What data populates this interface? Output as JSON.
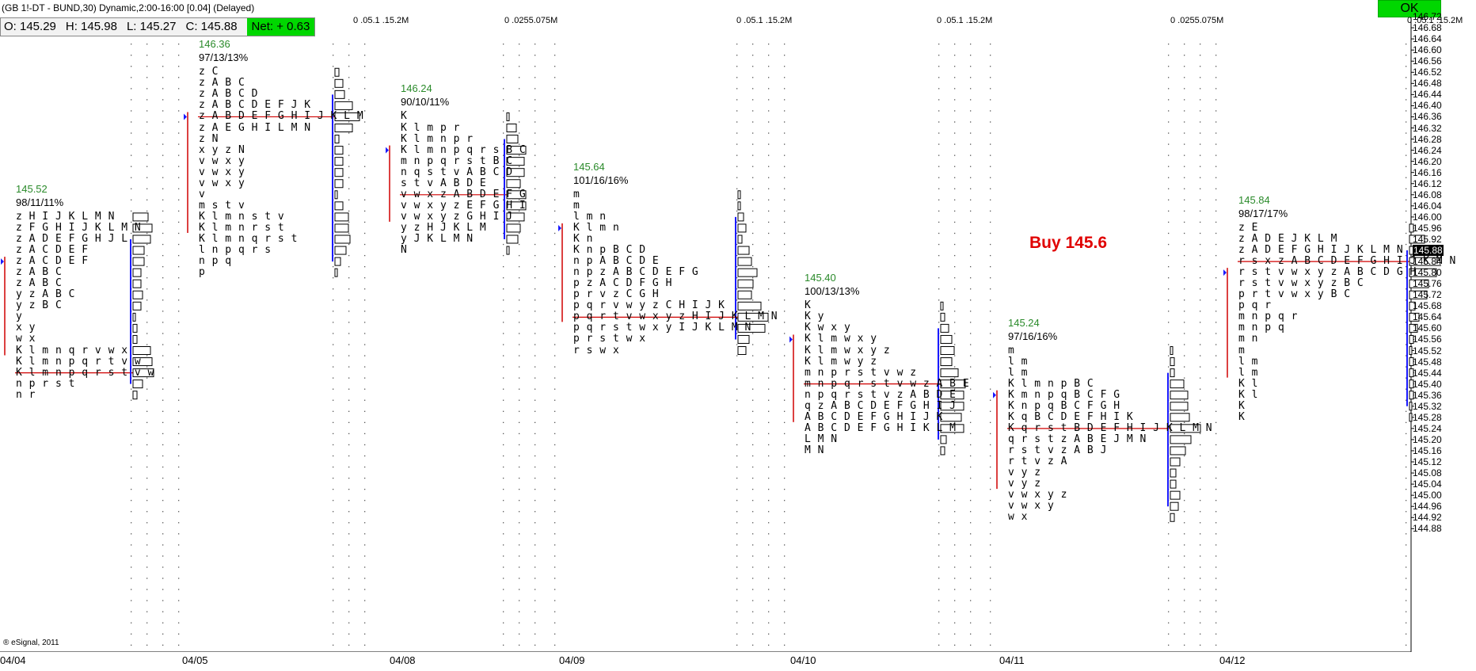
{
  "window_title": "(GB 1!-DT - BUND,30) Dynamic,2:00-16:00 [0.04] (Delayed)",
  "ohlc": {
    "open": "O: 145.29",
    "high": "H: 145.98",
    "low": "L: 145.27",
    "close": "C: 145.88",
    "net": "Net: + 0.63"
  },
  "ok_label": "OK",
  "buy_annotation": "Buy 145.6",
  "footer": "® eSignal, 2011",
  "current_price": "145.88",
  "price_axis": [
    "146.72",
    "146.68",
    "146.64",
    "146.60",
    "146.56",
    "146.52",
    "146.48",
    "146.44",
    "146.40",
    "146.36",
    "146.32",
    "146.28",
    "146.24",
    "146.20",
    "146.16",
    "146.12",
    "146.08",
    "146.04",
    "146.00",
    "145.96",
    "145.92",
    "145.88",
    "145.84",
    "145.80",
    "145.76",
    "145.72",
    "145.68",
    "145.64",
    "145.60",
    "145.56",
    "145.52",
    "145.48",
    "145.44",
    "145.40",
    "145.36",
    "145.32",
    "145.28",
    "145.24",
    "145.20",
    "145.16",
    "145.12",
    "145.08",
    "145.04",
    "145.00",
    "144.96",
    "144.92",
    "144.88"
  ],
  "dates": [
    "04/04",
    "04/05",
    "04/08",
    "04/09",
    "04/10",
    "04/11",
    "04/12"
  ],
  "volume_scales": [
    {
      "labels": [
        "0 .05.1 .15.2M"
      ]
    },
    {
      "labels": [
        "0 .0255.075M"
      ]
    },
    {
      "labels": [
        "0 .05.1 .15.2M"
      ]
    },
    {
      "labels": [
        "0 .05.1 .15.2M"
      ]
    },
    {
      "labels": [
        "0 .0255.075M"
      ]
    },
    {
      "labels": [
        "0 .05.1 .15.2M"
      ]
    }
  ],
  "profiles": [
    {
      "poc": "145.52",
      "stats": "98/11/11%",
      "top": "146.00",
      "rows": [
        "z H I J K L M N",
        "z F G H I J K L M N",
        "z A D E F G H J L",
        "z A C D E F",
        "z A C D E F",
        "z A B C",
        "z A B C",
        "y z A B C",
        "y z B C",
        "y",
        "x y",
        "w x",
        "K l m n q r v w x",
        "K l m n p q r t v w",
        "K l m n p q r s t v w",
        "n p r s t",
        "n r"
      ],
      "strike": 14
    },
    {
      "poc": "146.36",
      "stats": "97/13/13%",
      "top": "146.52",
      "rows": [
        "z C",
        "z A B C",
        "z A B C D",
        "z A B C D E F J K",
        "z A B D E F G H I J K L M",
        "z A E G H I L M N",
        "z N",
        "x y z N",
        "v w x y",
        "v w x y",
        "v w x y",
        "v",
        "m s t v",
        "K l m n s t v",
        "K l m n r s t",
        "K l m n q r s t",
        "l n p q r s",
        "n p q",
        "p"
      ],
      "strike": 4
    },
    {
      "poc": "146.24",
      "stats": "90/10/11%",
      "top": "146.36",
      "rows": [
        "K",
        "K l m p r",
        "K l m n p r",
        "K l m n p q r s B C",
        "m n p q r s t B C",
        "n q s t v A B C D",
        "s t v A B D E",
        "v w x z A B D E F G",
        "v w x y z E F G H I",
        "v w x y z G H I J",
        "y z H J K L M",
        "y J K L M N",
        "N"
      ],
      "strike": 7
    },
    {
      "poc": "145.64",
      "stats": "101/16/16%",
      "top": "146.08",
      "rows": [
        "m",
        "m",
        "l m n",
        "K l m n",
        "K n",
        "K n p B C D",
        "n p A B C D E",
        "n p z A B C D E F G",
        "p z A C D F G H",
        "p r v z C G H",
        "p q r v w y z C H I J K",
        "p q r t v w x y z H I J K L M N",
        "p q r s t w x y I J K L M N",
        "p r s t w x",
        "r s w x"
      ],
      "strike": 11
    },
    {
      "poc": "145.40",
      "stats": "100/13/13%",
      "top": "145.68",
      "rows": [
        "K",
        "K y",
        "K w x y",
        "K l m w x y",
        "K l m w x y z",
        "K l m w y z",
        "m n p r s t v w z",
        "m n p q r s t v w z A B E",
        "n p q r s t v z A B D E",
        "q z A B C D E F G H I J",
        "A B C D E F G H I J K",
        "A B C D E F G H I K L M",
        "L M N",
        "M N"
      ],
      "strike": 7
    },
    {
      "poc": "145.24",
      "stats": "97/16/16%",
      "top": "145.52",
      "rows": [
        "m",
        "l m",
        "l m",
        "K l m n p B C",
        "K m n p q B C F G",
        "K n p q B C F G H",
        "K q B C D E F H I K",
        "K q r s t B D E F H I J K L M N",
        "q r s t z A B E J M N",
        "r s t v z A B J",
        "r t v z A",
        "v y z",
        "v y z",
        "v w x y z",
        "v w x y",
        "w x"
      ],
      "strike": 7
    },
    {
      "poc": "145.84",
      "stats": "98/17/17%",
      "top": "145.96",
      "rows": [
        "z E",
        "z A D E J K L M",
        "z A D E F G H I J K L M N",
        "r s x z A B C D E F G H I J K M N",
        "r s t v w x y z A B C D G H",
        "r s t v w x y z B C",
        "p r t v w x y B C",
        "p q r",
        "m n p q r",
        "m n p q",
        "m n",
        "m",
        "l m",
        "l m",
        "K l",
        "K l",
        "K",
        "K"
      ],
      "strike": 3
    }
  ]
}
